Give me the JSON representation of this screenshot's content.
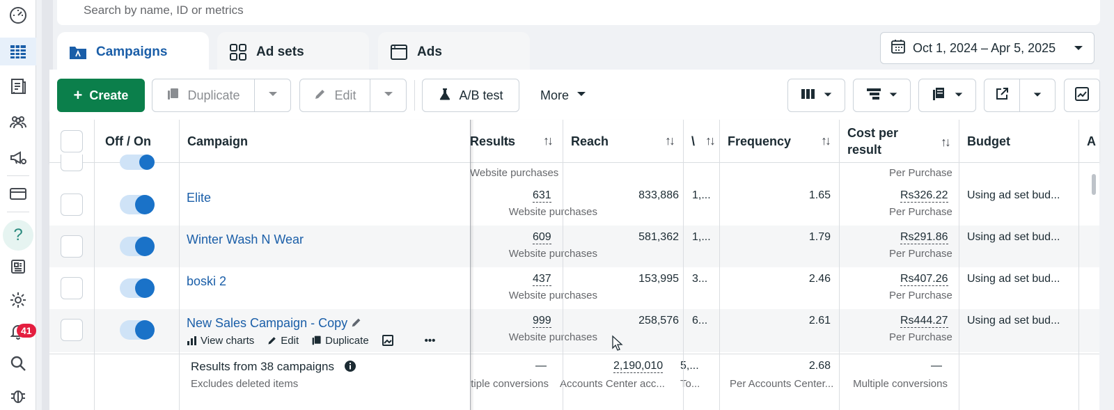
{
  "search": {
    "placeholder": "Search by name, ID or metrics"
  },
  "tabs": [
    {
      "label": "Campaigns",
      "icon": "campaign-folder-icon",
      "active": true
    },
    {
      "label": "Ad sets",
      "icon": "grid-icon",
      "active": false
    },
    {
      "label": "Ads",
      "icon": "window-icon",
      "active": false
    }
  ],
  "date_range": {
    "label": "Oct 1, 2024 – Apr 5, 2025",
    "icon": "calendar-icon"
  },
  "toolbar": {
    "create_label": "Create",
    "duplicate_label": "Duplicate",
    "edit_label": "Edit",
    "ab_test_label": "A/B test",
    "more_label": "More"
  },
  "columns": {
    "off_on": "Off / On",
    "campaign": "Campaign",
    "results": "Results",
    "reach": "Reach",
    "impressions_short": "\\",
    "frequency": "Frequency",
    "cost_per_result_line1": "Cost per",
    "cost_per_result_line2": "result",
    "budget": "Budget",
    "next_col": "A"
  },
  "partial_row": {
    "results_sub": "Website purchases",
    "cost_sub": "Per Purchase"
  },
  "rows": [
    {
      "campaign": "Elite",
      "results": "631",
      "results_sub": "Website purchases",
      "reach": "833,886",
      "impressions": "1,...",
      "frequency": "1.65",
      "cost": "Rs326.22",
      "cost_sub": "Per Purchase",
      "budget": "Using ad set bud...",
      "on": true
    },
    {
      "campaign": "Winter Wash N Wear",
      "results": "609",
      "results_sub": "Website purchases",
      "reach": "581,362",
      "impressions": "1,...",
      "frequency": "1.79",
      "cost": "Rs291.86",
      "cost_sub": "Per Purchase",
      "budget": "Using ad set bud...",
      "on": true
    },
    {
      "campaign": "boski 2",
      "results": "437",
      "results_sub": "Website purchases",
      "reach": "153,995",
      "impressions": "3...",
      "frequency": "2.46",
      "cost": "Rs407.26",
      "cost_sub": "Per Purchase",
      "budget": "Using ad set bud...",
      "on": true
    },
    {
      "campaign": "New Sales Campaign - Copy",
      "results": "999",
      "results_sub": "Website purchases",
      "reach": "258,576",
      "impressions": "6...",
      "frequency": "2.61",
      "cost": "Rs444.27",
      "cost_sub": "Per Purchase",
      "budget": "Using ad set bud...",
      "on": true
    }
  ],
  "row_actions": {
    "view_charts": "View charts",
    "edit": "Edit",
    "duplicate": "Duplicate",
    "more": "•••"
  },
  "footer": {
    "title": "Results from 38 campaigns",
    "subtitle": "Excludes deleted items",
    "results": "—",
    "results_sub": "Multiple conversions",
    "reach": "2,190,010",
    "reach_sub": "Accounts Center acc...",
    "impressions": "5,...",
    "impressions_sub": "To...",
    "frequency": "2.68",
    "frequency_sub": "Per Accounts Center...",
    "cost": "—",
    "cost_sub": "Multiple conversions"
  },
  "sidebar": {
    "notification_count": "41",
    "help_label": "?"
  },
  "colors": {
    "accent_blue": "#1a5ea8",
    "create_green": "#0b7f4b",
    "badge_red": "#e41e3f"
  }
}
